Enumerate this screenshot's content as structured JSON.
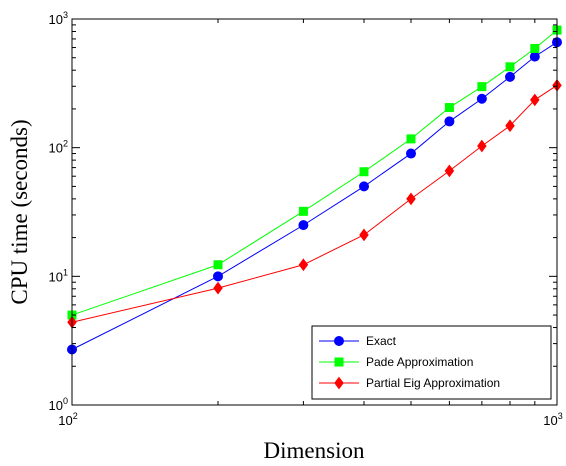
{
  "chart_data": {
    "type": "line",
    "title": "",
    "xlabel": "Dimension",
    "ylabel": "CPU time (seconds)",
    "xscale": "log",
    "yscale": "log",
    "xlim": [
      100,
      1000
    ],
    "ylim": [
      1,
      1000
    ],
    "x_ticks": [
      {
        "base": "10",
        "exp": "2",
        "value": 100
      },
      {
        "base": "10",
        "exp": "3",
        "value": 1000
      }
    ],
    "y_ticks": [
      {
        "base": "10",
        "exp": "0",
        "value": 1
      },
      {
        "base": "10",
        "exp": "1",
        "value": 10
      },
      {
        "base": "10",
        "exp": "2",
        "value": 100
      },
      {
        "base": "10",
        "exp": "3",
        "value": 1000
      }
    ],
    "grid": false,
    "legend_position": "bottom-right",
    "x": [
      100,
      200,
      300,
      400,
      500,
      600,
      700,
      800,
      900,
      1000
    ],
    "series": [
      {
        "name": "Exact",
        "color": "#0000ff",
        "marker": "circle",
        "values": [
          2.7,
          10,
          25,
          50,
          90,
          160,
          240,
          355,
          510,
          660
        ]
      },
      {
        "name": "Pade Approximation",
        "color": "#00ff00",
        "marker": "square",
        "values": [
          5.0,
          12.3,
          32,
          65,
          117,
          205,
          298,
          425,
          590,
          820
        ]
      },
      {
        "name": "Partial Eig Approximation",
        "color": "#ff0000",
        "marker": "diamond",
        "values": [
          4.4,
          8.1,
          12.3,
          21,
          40,
          66,
          103,
          148,
          235,
          305
        ]
      }
    ]
  }
}
